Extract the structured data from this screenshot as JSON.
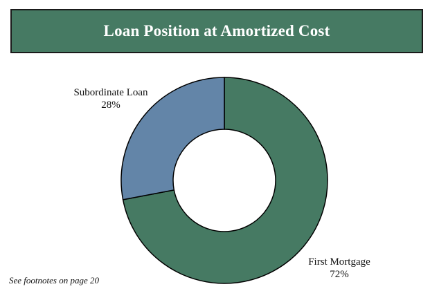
{
  "header": {
    "title": "Loan Position at Amortized Cost"
  },
  "footnote": "See footnotes on page 20",
  "colors": {
    "banner": "#467a63",
    "first_mortgage": "#467a63",
    "subordinate_loan": "#6385a8",
    "outline": "#000000"
  },
  "chart_data": {
    "type": "pie",
    "variant": "donut",
    "title": "Loan Position at Amortized Cost",
    "slices": [
      {
        "name": "First Mortgage",
        "value": 72,
        "label": "72%",
        "color": "#467a63"
      },
      {
        "name": "Subordinate Loan",
        "value": 28,
        "label": "28%",
        "color": "#6385a8"
      }
    ],
    "legend": "none",
    "labels": "outside"
  }
}
